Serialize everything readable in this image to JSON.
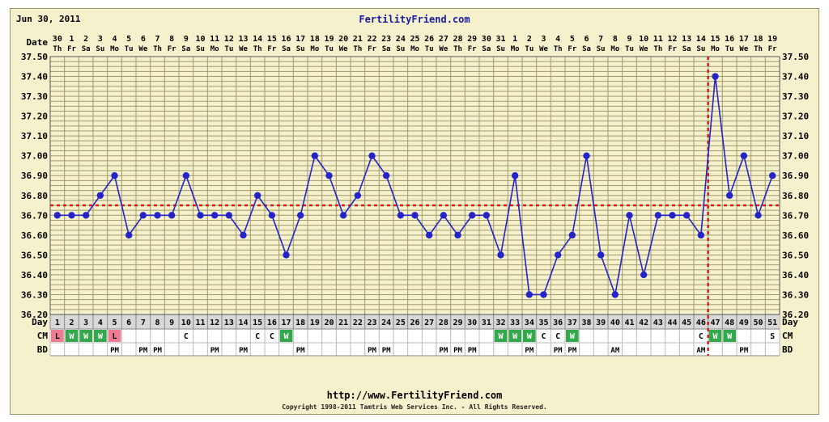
{
  "header": {
    "date": "Jun 30, 2011",
    "site": "FertilityFriend.com"
  },
  "footer": {
    "url": "http://www.FertilityFriend.com",
    "copyright": "Copyright 1998-2011 Tamtris Web Services Inc. - All Rights Reserved."
  },
  "colors": {
    "background": "#f6f1cd",
    "grid": "#a09a6c",
    "line": "#2424c8",
    "coverline": "#d11f1f",
    "cm_L": "#ef7c92",
    "cm_W": "#33a84c"
  },
  "chart_data": {
    "type": "line",
    "row_labels": {
      "date": "Date",
      "day": "Day",
      "cm": "CM",
      "bd": "BD"
    },
    "dates": [
      "30",
      "1",
      "2",
      "3",
      "4",
      "5",
      "6",
      "7",
      "8",
      "9",
      "10",
      "11",
      "12",
      "13",
      "14",
      "15",
      "16",
      "17",
      "18",
      "19",
      "20",
      "21",
      "22",
      "23",
      "24",
      "25",
      "26",
      "27",
      "28",
      "29",
      "30",
      "31",
      "1",
      "2",
      "3",
      "4",
      "5",
      "6",
      "7",
      "8",
      "9",
      "10",
      "11",
      "12",
      "13",
      "14",
      "15",
      "16",
      "17",
      "18",
      "19"
    ],
    "weekdays": [
      "Th",
      "Fr",
      "Sa",
      "Su",
      "Mo",
      "Tu",
      "We",
      "Th",
      "Fr",
      "Sa",
      "Su",
      "Mo",
      "Tu",
      "We",
      "Th",
      "Fr",
      "Sa",
      "Su",
      "Mo",
      "Tu",
      "We",
      "Th",
      "Fr",
      "Sa",
      "Su",
      "Mo",
      "Tu",
      "We",
      "Th",
      "Fr",
      "Sa",
      "Su",
      "Mo",
      "Tu",
      "We",
      "Th",
      "Fr",
      "Sa",
      "Su",
      "Mo",
      "Tu",
      "We",
      "Th",
      "Fr",
      "Sa",
      "Su",
      "Mo",
      "Tu",
      "We",
      "Th",
      "Fr"
    ],
    "days": [
      "1",
      "2",
      "3",
      "4",
      "5",
      "6",
      "7",
      "8",
      "9",
      "10",
      "11",
      "12",
      "13",
      "14",
      "15",
      "16",
      "17",
      "18",
      "19",
      "20",
      "21",
      "22",
      "23",
      "24",
      "25",
      "26",
      "27",
      "28",
      "29",
      "30",
      "31",
      "32",
      "33",
      "34",
      "35",
      "36",
      "37",
      "38",
      "39",
      "40",
      "41",
      "42",
      "43",
      "44",
      "45",
      "46",
      "47",
      "48",
      "49",
      "50",
      "51"
    ],
    "temperatures": [
      36.7,
      36.7,
      36.7,
      36.8,
      36.9,
      36.6,
      36.7,
      36.7,
      36.7,
      36.9,
      36.7,
      36.7,
      36.7,
      36.6,
      36.8,
      36.7,
      36.5,
      36.7,
      37.0,
      36.9,
      36.7,
      36.8,
      37.0,
      36.9,
      36.7,
      36.7,
      36.6,
      36.7,
      36.6,
      36.7,
      36.7,
      36.5,
      36.9,
      36.3,
      36.3,
      36.5,
      36.6,
      37.0,
      36.5,
      36.3,
      36.7,
      36.4,
      36.7,
      36.7,
      36.7,
      36.6,
      37.4,
      36.8,
      37.0,
      36.7,
      36.9
    ],
    "y_ticks": [
      "37.50",
      "37.40",
      "37.30",
      "37.20",
      "37.10",
      "37.00",
      "36.90",
      "36.80",
      "36.70",
      "36.60",
      "36.50",
      "36.40",
      "36.30",
      "36.20"
    ],
    "ylim": [
      36.2,
      37.5
    ],
    "y_minor_step": 0.025,
    "coverline": 36.75,
    "ovulation_day": 46,
    "cm": [
      "L",
      "W",
      "W",
      "W",
      "L",
      "",
      "",
      "",
      "",
      "C",
      "",
      "",
      "",
      "",
      "C",
      "C",
      "W",
      "",
      "",
      "",
      "",
      "",
      "",
      "",
      "",
      "",
      "",
      "",
      "",
      "",
      "",
      "W",
      "W",
      "W",
      "C",
      "C",
      "W",
      "",
      "",
      "",
      "",
      "",
      "",
      "",
      "",
      "C",
      "W",
      "W",
      "",
      "",
      "S"
    ],
    "bd": [
      "",
      "",
      "",
      "",
      "PM",
      "",
      "PM",
      "PM",
      "",
      "",
      "",
      "PM",
      "",
      "PM",
      "",
      "",
      "",
      "PM",
      "",
      "",
      "",
      "",
      "PM",
      "PM",
      "",
      "",
      "",
      "PM",
      "PM",
      "PM",
      "",
      "",
      "",
      "PM",
      "",
      "PM",
      "PM",
      "",
      "",
      "AM",
      "",
      "",
      "",
      "",
      "",
      "AM",
      "",
      "",
      "PM",
      "",
      ""
    ],
    "grid": true
  }
}
